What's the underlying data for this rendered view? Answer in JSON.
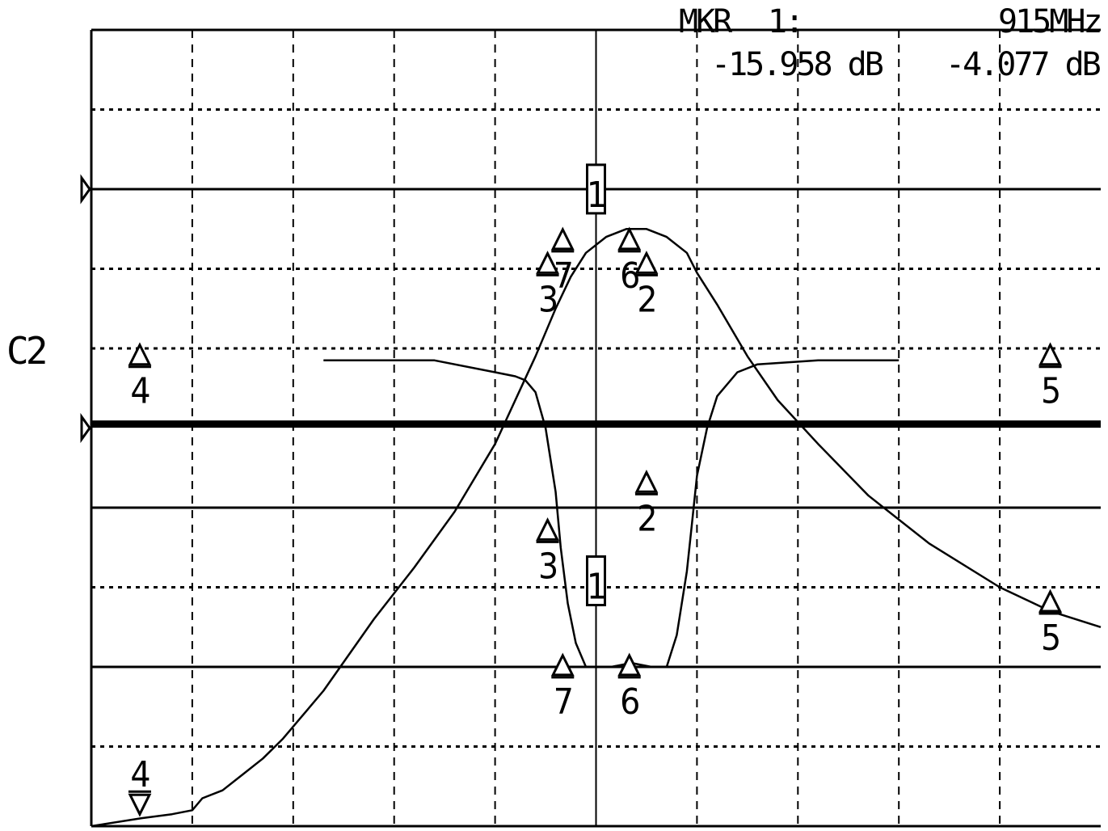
{
  "header": {
    "marker_prefix": "MKR",
    "marker_id": "1:",
    "marker_freq": "915MHz",
    "trace1_readout": "-15.958 dB",
    "trace2_readout": "-4.077 dB"
  },
  "channel_label": "C2",
  "chart_data": {
    "type": "line",
    "title": "",
    "xlabel": "",
    "ylabel": "",
    "x_divisions": 10,
    "y_divisions": 10,
    "grid": true,
    "background": "#ffffff",
    "trace_color": "#000000",
    "reference_lines_div": [
      2,
      4
    ],
    "limit_line_div": 5,
    "series": [
      {
        "points": [
          [
            0.0,
            0.0
          ],
          [
            0.5,
            0.1
          ],
          [
            0.8,
            0.15
          ],
          [
            1.0,
            0.2
          ],
          [
            1.1,
            0.35
          ],
          [
            1.3,
            0.45
          ],
          [
            1.5,
            0.65
          ],
          [
            1.7,
            0.85
          ],
          [
            1.9,
            1.1
          ],
          [
            2.3,
            1.7
          ],
          [
            2.8,
            2.6
          ],
          [
            3.2,
            3.25
          ],
          [
            3.6,
            3.95
          ],
          [
            4.0,
            4.8
          ],
          [
            4.4,
            5.9
          ],
          [
            4.6,
            6.5
          ],
          [
            4.75,
            6.9
          ],
          [
            4.9,
            7.2
          ],
          [
            5.1,
            7.4
          ],
          [
            5.3,
            7.5
          ],
          [
            5.5,
            7.5
          ],
          [
            5.7,
            7.4
          ],
          [
            5.9,
            7.2
          ],
          [
            6.0,
            6.95
          ],
          [
            6.2,
            6.55
          ],
          [
            6.5,
            5.9
          ],
          [
            6.8,
            5.35
          ],
          [
            7.2,
            4.8
          ],
          [
            7.7,
            4.15
          ],
          [
            8.3,
            3.55
          ],
          [
            9.0,
            3.0
          ],
          [
            9.5,
            2.7
          ],
          [
            10.0,
            2.5
          ]
        ]
      },
      {
        "points": [
          [
            2.3,
            5.85
          ],
          [
            3.4,
            5.85
          ],
          [
            4.0,
            5.7
          ],
          [
            4.2,
            5.65
          ],
          [
            4.3,
            5.6
          ],
          [
            4.4,
            5.45
          ],
          [
            4.5,
            5.0
          ],
          [
            4.6,
            4.2
          ],
          [
            4.65,
            3.5
          ],
          [
            4.72,
            2.8
          ],
          [
            4.8,
            2.3
          ],
          [
            4.9,
            2.0
          ],
          [
            5.15,
            2.0
          ],
          [
            5.35,
            2.05
          ],
          [
            5.55,
            2.0
          ],
          [
            5.7,
            2.0
          ],
          [
            5.8,
            2.4
          ],
          [
            5.9,
            3.2
          ],
          [
            5.95,
            3.8
          ],
          [
            6.0,
            4.4
          ],
          [
            6.1,
            5.0
          ],
          [
            6.2,
            5.4
          ],
          [
            6.4,
            5.7
          ],
          [
            6.6,
            5.8
          ],
          [
            7.2,
            5.85
          ],
          [
            8.0,
            5.85
          ]
        ]
      }
    ],
    "markers": [
      {
        "label": "1",
        "x": 5.0,
        "y": 7.92,
        "boxed": true
      },
      {
        "label": "7",
        "x": 4.67,
        "y": 7.25
      },
      {
        "label": "3",
        "x": 4.52,
        "y": 6.95
      },
      {
        "label": "6",
        "x": 5.33,
        "y": 7.25
      },
      {
        "label": "2",
        "x": 5.5,
        "y": 6.95
      },
      {
        "label": "4",
        "x": 0.48,
        "y": 5.8
      },
      {
        "label": "5",
        "x": 9.5,
        "y": 5.8
      },
      {
        "label": "1",
        "x": 5.0,
        "y": 3.0,
        "boxed": true
      },
      {
        "label": "3",
        "x": 4.52,
        "y": 3.6
      },
      {
        "label": "2",
        "x": 5.5,
        "y": 4.2
      },
      {
        "label": "7",
        "x": 4.67,
        "y": 1.9
      },
      {
        "label": "6",
        "x": 5.33,
        "y": 1.9
      },
      {
        "label": "5",
        "x": 9.5,
        "y": 2.7
      },
      {
        "label": "4",
        "x": 0.48,
        "y": 0.15,
        "inverted": true
      }
    ]
  }
}
